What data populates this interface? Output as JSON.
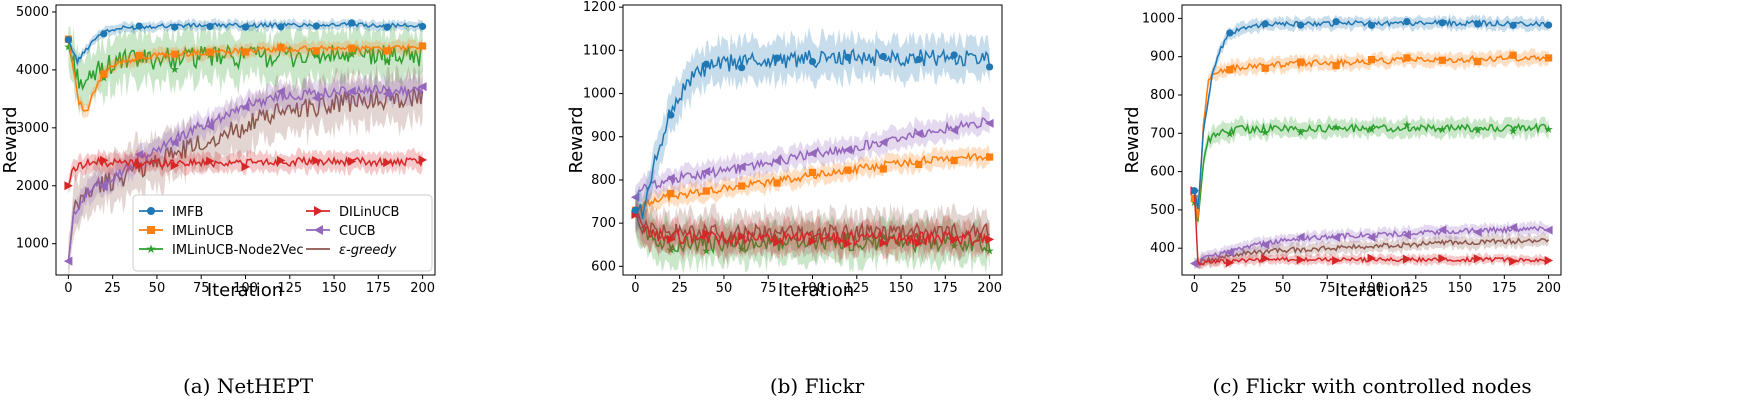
{
  "chart_data": [
    {
      "type": "line",
      "caption": "(a) NetHEPT",
      "xlabel": "Iteration",
      "ylabel": "Reward",
      "xlim": [
        -7,
        207
      ],
      "ylim": [
        460,
        5120
      ],
      "xticks": [
        0,
        25,
        50,
        75,
        100,
        125,
        150,
        175,
        200
      ],
      "yticks": [
        1000,
        2000,
        3000,
        4000,
        5000
      ],
      "legend": {
        "location": "lower-right",
        "columns": 2
      },
      "series": [
        {
          "name": "IMFB",
          "marker": "circle",
          "band": 80,
          "points": [
            [
              0,
              4520
            ],
            [
              5,
              4150
            ],
            [
              10,
              4350
            ],
            [
              15,
              4550
            ],
            [
              20,
              4650
            ],
            [
              30,
              4720
            ],
            [
              50,
              4760
            ],
            [
              75,
              4770
            ],
            [
              100,
              4770
            ],
            [
              150,
              4780
            ],
            [
              200,
              4760
            ]
          ]
        },
        {
          "name": "IMLinUCB",
          "marker": "square",
          "band": 110,
          "points": [
            [
              0,
              4530
            ],
            [
              3,
              4000
            ],
            [
              6,
              3450
            ],
            [
              10,
              3250
            ],
            [
              15,
              3650
            ],
            [
              20,
              3950
            ],
            [
              30,
              4150
            ],
            [
              50,
              4250
            ],
            [
              75,
              4300
            ],
            [
              100,
              4340
            ],
            [
              150,
              4370
            ],
            [
              200,
              4380
            ]
          ]
        },
        {
          "name": "IMLinUCB-Node2Vec",
          "marker": "star",
          "band": 420,
          "points": [
            [
              0,
              4400
            ],
            [
              5,
              3900
            ],
            [
              10,
              3700
            ],
            [
              15,
              3950
            ],
            [
              20,
              4050
            ],
            [
              30,
              4150
            ],
            [
              50,
              4200
            ],
            [
              75,
              4220
            ],
            [
              100,
              4230
            ],
            [
              150,
              4240
            ],
            [
              200,
              4250
            ]
          ]
        },
        {
          "name": "DILinUCB",
          "marker": "triangle-right",
          "band": 160,
          "points": [
            [
              0,
              2000
            ],
            [
              3,
              2300
            ],
            [
              10,
              2400
            ],
            [
              50,
              2400
            ],
            [
              100,
              2400
            ],
            [
              150,
              2420
            ],
            [
              200,
              2400
            ]
          ]
        },
        {
          "name": "CUCB",
          "marker": "triangle-left",
          "band": 200,
          "points": [
            [
              0,
              700
            ],
            [
              3,
              1500
            ],
            [
              8,
              1800
            ],
            [
              15,
              1980
            ],
            [
              25,
              2150
            ],
            [
              40,
              2450
            ],
            [
              60,
              2800
            ],
            [
              80,
              3100
            ],
            [
              100,
              3400
            ],
            [
              120,
              3550
            ],
            [
              150,
              3620
            ],
            [
              200,
              3660
            ]
          ]
        },
        {
          "name": "ε-greedy",
          "marker": "none",
          "band": 420,
          "points": [
            [
              0,
              700
            ],
            [
              3,
              1500
            ],
            [
              8,
              1800
            ],
            [
              15,
              1980
            ],
            [
              25,
              2100
            ],
            [
              40,
              2300
            ],
            [
              60,
              2550
            ],
            [
              80,
              2800
            ],
            [
              100,
              3050
            ],
            [
              125,
              3320
            ],
            [
              150,
              3430
            ],
            [
              175,
              3500
            ],
            [
              200,
              3530
            ]
          ]
        }
      ]
    },
    {
      "type": "line",
      "caption": "(b) Flickr",
      "xlabel": "Iteration",
      "ylabel": "Reward",
      "xlim": [
        -7,
        207
      ],
      "ylim": [
        580,
        1205
      ],
      "xticks": [
        0,
        25,
        50,
        75,
        100,
        125,
        150,
        175,
        200
      ],
      "yticks": [
        600,
        700,
        800,
        900,
        1000,
        1100,
        1200
      ],
      "series": [
        {
          "name": "IMFB",
          "marker": "circle",
          "band": 45,
          "points": [
            [
              0,
              730
            ],
            [
              5,
              730
            ],
            [
              10,
              820
            ],
            [
              15,
              900
            ],
            [
              20,
              960
            ],
            [
              30,
              1030
            ],
            [
              40,
              1060
            ],
            [
              60,
              1075
            ],
            [
              100,
              1080
            ],
            [
              150,
              1085
            ],
            [
              200,
              1080
            ]
          ]
        },
        {
          "name": "IMLinUCB",
          "marker": "square",
          "band": 20,
          "points": [
            [
              0,
              730
            ],
            [
              5,
              740
            ],
            [
              10,
              755
            ],
            [
              25,
              765
            ],
            [
              50,
              780
            ],
            [
              75,
              795
            ],
            [
              100,
              810
            ],
            [
              125,
              825
            ],
            [
              150,
              840
            ],
            [
              175,
              850
            ],
            [
              200,
              855
            ]
          ]
        },
        {
          "name": "IMLinUCB-Node2Vec",
          "marker": "star",
          "band": 45,
          "points": [
            [
              0,
              720
            ],
            [
              5,
              680
            ],
            [
              15,
              655
            ],
            [
              50,
              650
            ],
            [
              100,
              655
            ],
            [
              150,
              655
            ],
            [
              200,
              655
            ]
          ]
        },
        {
          "name": "DILinUCB",
          "marker": "triangle-right",
          "band": 35,
          "points": [
            [
              0,
              720
            ],
            [
              5,
              680
            ],
            [
              15,
              670
            ],
            [
              50,
              665
            ],
            [
              100,
              665
            ],
            [
              150,
              665
            ],
            [
              200,
              665
            ]
          ]
        },
        {
          "name": "CUCB",
          "marker": "triangle-left",
          "band": 25,
          "points": [
            [
              0,
              760
            ],
            [
              5,
              780
            ],
            [
              10,
              790
            ],
            [
              25,
              805
            ],
            [
              50,
              820
            ],
            [
              75,
              840
            ],
            [
              100,
              860
            ],
            [
              125,
              875
            ],
            [
              150,
              900
            ],
            [
              175,
              920
            ],
            [
              200,
              935
            ]
          ]
        },
        {
          "name": "ε-greedy",
          "marker": "none",
          "band": 45,
          "points": [
            [
              0,
              720
            ],
            [
              5,
              690
            ],
            [
              15,
              680
            ],
            [
              50,
              675
            ],
            [
              100,
              675
            ],
            [
              150,
              678
            ],
            [
              200,
              680
            ]
          ]
        }
      ]
    },
    {
      "type": "line",
      "caption": "(c) Flickr with controlled nodes",
      "xlabel": "Iteration",
      "ylabel": "Reward",
      "xlim": [
        -7,
        207
      ],
      "ylim": [
        330,
        1035
      ],
      "xticks": [
        0,
        25,
        50,
        75,
        100,
        125,
        150,
        175,
        200
      ],
      "yticks": [
        400,
        500,
        600,
        700,
        800,
        900,
        1000
      ],
      "series": [
        {
          "name": "IMFB",
          "marker": "circle",
          "band": 15,
          "points": [
            [
              0,
              550
            ],
            [
              2,
              500
            ],
            [
              5,
              700
            ],
            [
              10,
              850
            ],
            [
              15,
              920
            ],
            [
              20,
              960
            ],
            [
              30,
              980
            ],
            [
              50,
              985
            ],
            [
              100,
              988
            ],
            [
              150,
              988
            ],
            [
              200,
              985
            ]
          ]
        },
        {
          "name": "IMLinUCB",
          "marker": "square",
          "band": 18,
          "points": [
            [
              0,
              530
            ],
            [
              2,
              470
            ],
            [
              5,
              720
            ],
            [
              8,
              840
            ],
            [
              12,
              860
            ],
            [
              20,
              870
            ],
            [
              50,
              880
            ],
            [
              100,
              888
            ],
            [
              150,
              893
            ],
            [
              200,
              898
            ]
          ]
        },
        {
          "name": "IMLinUCB-Node2Vec",
          "marker": "star",
          "band": 22,
          "points": [
            [
              0,
              520
            ],
            [
              2,
              470
            ],
            [
              5,
              620
            ],
            [
              8,
              680
            ],
            [
              12,
              700
            ],
            [
              25,
              710
            ],
            [
              50,
              712
            ],
            [
              100,
              713
            ],
            [
              150,
              714
            ],
            [
              200,
              715
            ]
          ]
        },
        {
          "name": "DILinUCB",
          "marker": "triangle-right",
          "band": 12,
          "points": [
            [
              0,
              550
            ],
            [
              2,
              360
            ],
            [
              10,
              365
            ],
            [
              50,
              370
            ],
            [
              100,
              370
            ],
            [
              150,
              370
            ],
            [
              200,
              370
            ]
          ]
        },
        {
          "name": "CUCB",
          "marker": "triangle-left",
          "band": 15,
          "points": [
            [
              0,
              360
            ],
            [
              10,
              380
            ],
            [
              25,
              400
            ],
            [
              50,
              420
            ],
            [
              75,
              430
            ],
            [
              100,
              435
            ],
            [
              125,
              440
            ],
            [
              150,
              445
            ],
            [
              175,
              448
            ],
            [
              200,
              452
            ]
          ]
        },
        {
          "name": "ε-greedy",
          "marker": "none",
          "band": 15,
          "points": [
            [
              0,
              360
            ],
            [
              10,
              370
            ],
            [
              25,
              385
            ],
            [
              50,
              395
            ],
            [
              75,
              400
            ],
            [
              100,
              405
            ],
            [
              125,
              410
            ],
            [
              150,
              415
            ],
            [
              175,
              418
            ],
            [
              200,
              420
            ]
          ]
        }
      ]
    }
  ],
  "colors": {
    "IMFB": "#1f77b4",
    "IMLinUCB": "#ff7f0e",
    "IMLinUCB-Node2Vec": "#2ca02c",
    "DILinUCB": "#d62728",
    "CUCB": "#9467bd",
    "ε-greedy": "#8c564b"
  }
}
